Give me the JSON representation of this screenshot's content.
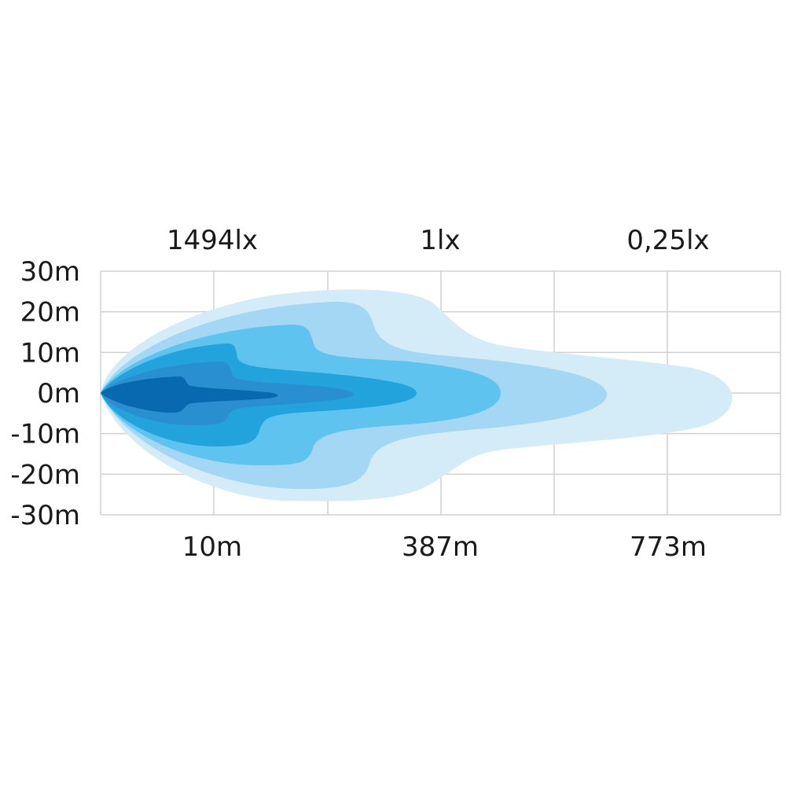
{
  "chart_data": {
    "type": "heatmap",
    "subtype": "isolux beam pattern contour",
    "title": "",
    "y_ticks": [
      "30m",
      "20m",
      "10m",
      "0m",
      "-10m",
      "-20m",
      "-30m"
    ],
    "y_values": [
      30,
      20,
      10,
      0,
      -10,
      -20,
      -30
    ],
    "ylim": [
      -30,
      30
    ],
    "top_labels": [
      "1494lx",
      "1lx",
      "0,25lx"
    ],
    "bottom_labels": [
      "10m",
      "387m",
      "773m"
    ],
    "grid": true,
    "contour_colors": [
      "#d4ebf8",
      "#a3d7f3",
      "#5ec3ef",
      "#22a3dc",
      "#2a8fd1",
      "#0868b0"
    ],
    "grid_color": "#d0d0d0"
  }
}
